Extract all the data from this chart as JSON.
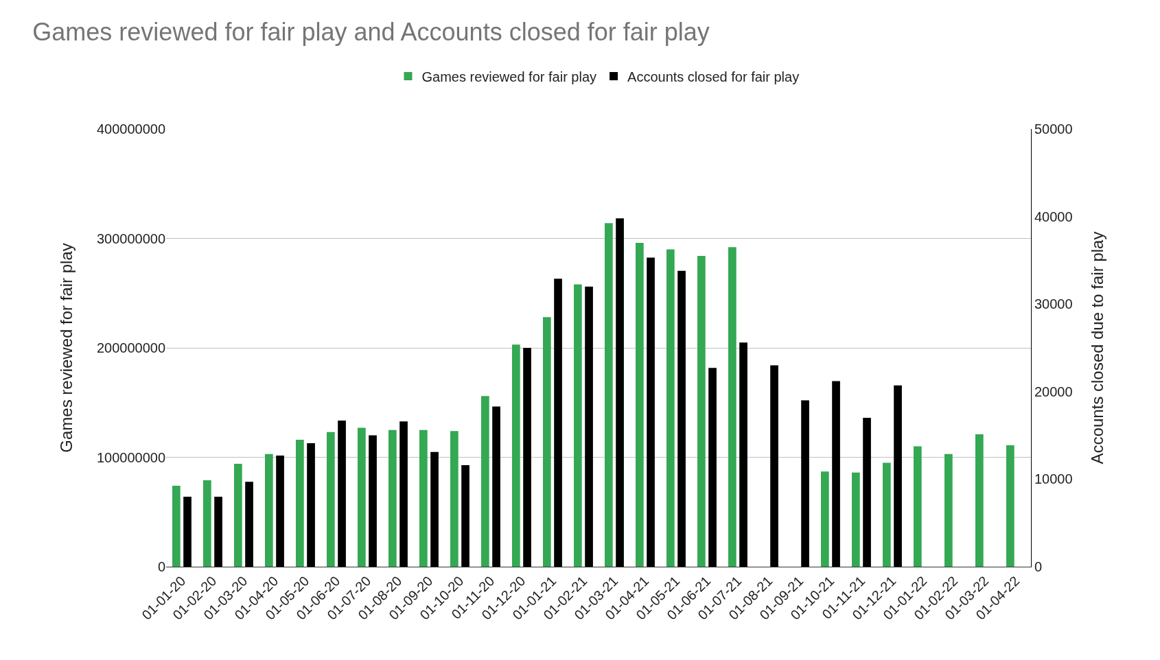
{
  "chart_data": {
    "type": "bar",
    "title": "Games reviewed for fair play and Accounts closed for fair play",
    "categories": [
      "01-01-20",
      "01-02-20",
      "01-03-20",
      "01-04-20",
      "01-05-20",
      "01-06-20",
      "01-07-20",
      "01-08-20",
      "01-09-20",
      "01-10-20",
      "01-11-20",
      "01-12-20",
      "01-01-21",
      "01-02-21",
      "01-03-21",
      "01-04-21",
      "01-05-21",
      "01-06-21",
      "01-07-21",
      "01-08-21",
      "01-09-21",
      "01-10-21",
      "01-11-21",
      "01-12-21",
      "01-01-22",
      "01-02-22",
      "01-03-22",
      "01-04-22"
    ],
    "series": [
      {
        "name": "Games reviewed for fair play",
        "color": "#34a853",
        "values": [
          74000000,
          79000000,
          94000000,
          103000000,
          116000000,
          123000000,
          127000000,
          125000000,
          125000000,
          124000000,
          156000000,
          203000000,
          228000000,
          258000000,
          314000000,
          296000000,
          290000000,
          284000000,
          292000000,
          null,
          null,
          87000000,
          86000000,
          95000000,
          110000000,
          103000000,
          121000000,
          111000000
        ]
      },
      {
        "name": "Accounts closed for fair play",
        "color": "#000000",
        "axis": "y2",
        "values": [
          8000,
          8000,
          9700,
          12700,
          14100,
          16700,
          15000,
          16600,
          13100,
          11600,
          18300,
          25000,
          32900,
          32000,
          39800,
          35300,
          33800,
          22700,
          25600,
          23000,
          19000,
          21200,
          17000,
          20700,
          null,
          null,
          null,
          null
        ]
      }
    ],
    "ylabel": "Games reviewed for fair play",
    "y2label": "Accounts closed due to fair play",
    "ylim": [
      0,
      400000000
    ],
    "yticks": [
      0,
      100000000,
      200000000,
      300000000,
      400000000
    ],
    "y2lim": [
      0,
      50000
    ],
    "y2ticks": [
      0,
      10000,
      20000,
      30000,
      40000,
      50000
    ],
    "grid": "y",
    "legend": "top"
  }
}
